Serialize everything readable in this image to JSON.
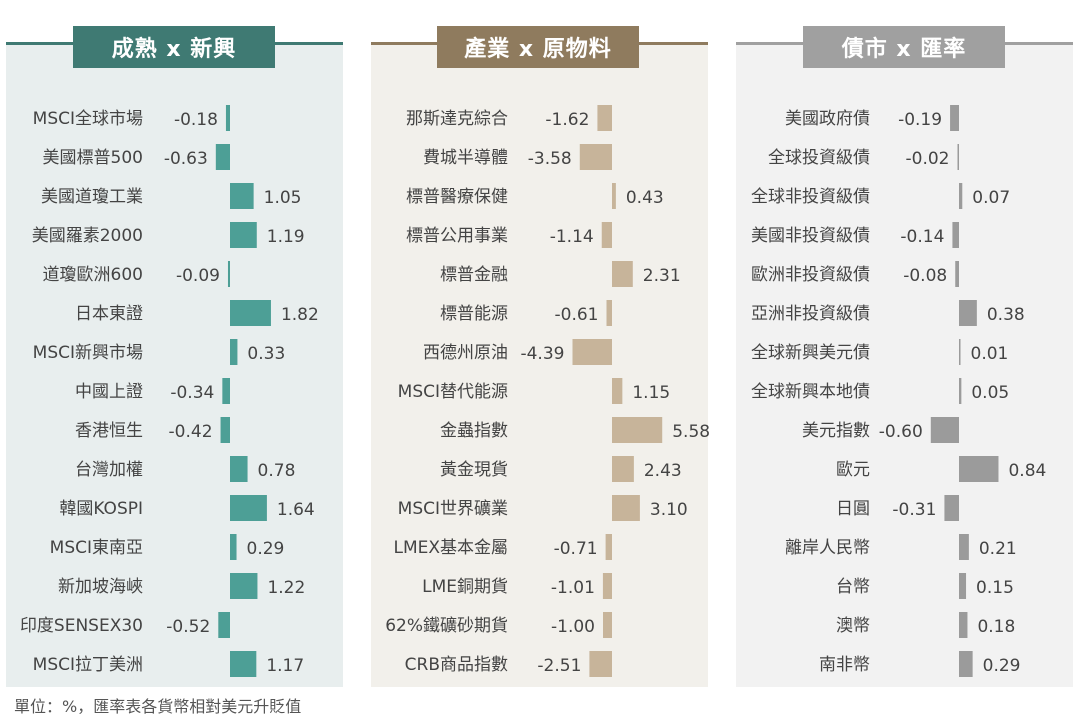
{
  "footnote": "單位：%，匯率表各貨幣相對美元升貶值",
  "colors": {
    "panel1": "#e8eeee",
    "panel2": "#f2f0eb",
    "panel3": "#f2f2f2",
    "teal": "#4d9f96",
    "tealDark": "#3f7a73",
    "tan": "#c7b49a",
    "brown": "#8f7b5e",
    "gray": "#9b9b9b",
    "grayDark": "#a0a0a0"
  },
  "chart_data": [
    {
      "type": "bar",
      "title": "成熟 x 新興",
      "categories": [
        "MSCI全球市場",
        "美國標普500",
        "美國道瓊工業",
        "美國羅素2000",
        "道瓊歐洲600",
        "日本東證",
        "MSCI新興市場",
        "中國上證",
        "香港恒生",
        "台灣加權",
        "韓國KOSPI",
        "MSCI東南亞",
        "新加坡海峽",
        "印度SENSEX30",
        "MSCI拉丁美洲"
      ],
      "values": [
        -0.18,
        -0.63,
        1.05,
        1.19,
        -0.09,
        1.82,
        0.33,
        -0.34,
        -0.42,
        0.78,
        1.64,
        0.29,
        1.22,
        -0.52,
        1.17
      ],
      "labels": [
        "-0.18",
        "-0.63",
        "1.05",
        "1.19",
        "-0.09",
        "1.82",
        "0.33",
        "-0.34",
        "-0.42",
        "0.78",
        "1.64",
        "0.29",
        "1.22",
        "-0.52",
        "1.17"
      ]
    },
    {
      "type": "bar",
      "title": "產業 x 原物料",
      "categories": [
        "那斯達克綜合",
        "費城半導體",
        "標普醫療保健",
        "標普公用事業",
        "標普金融",
        "標普能源",
        "西德州原油",
        "MSCI替代能源",
        "金蟲指數",
        "黃金現貨",
        "MSCI世界礦業",
        "LMEX基本金屬",
        "LME銅期貨",
        "62%鐵礦砂期貨",
        "CRB商品指數"
      ],
      "values": [
        -1.62,
        -3.58,
        0.43,
        -1.14,
        2.31,
        -0.61,
        -4.39,
        1.15,
        5.58,
        2.43,
        3.1,
        -0.71,
        -1.01,
        -1.0,
        -2.51
      ],
      "labels": [
        "-1.62",
        "-3.58",
        "0.43",
        "-1.14",
        "2.31",
        "-0.61",
        "-4.39",
        "1.15",
        "5.58",
        "2.43",
        "3.10",
        "-0.71",
        "-1.01",
        "-1.00",
        "-2.51"
      ]
    },
    {
      "type": "bar",
      "title": "債市 x 匯率",
      "categories": [
        "美國政府債",
        "全球投資級債",
        "全球非投資級債",
        "美國非投資級債",
        "歐洲非投資級債",
        "亞洲非投資級債",
        "全球新興美元債",
        "全球新興本地債",
        "美元指數",
        "歐元",
        "日圓",
        "離岸人民幣",
        "台幣",
        "澳幣",
        "南非幣"
      ],
      "values": [
        -0.19,
        -0.02,
        0.07,
        -0.14,
        -0.08,
        0.38,
        0.01,
        0.05,
        -0.6,
        0.84,
        -0.31,
        0.21,
        0.15,
        0.18,
        0.29
      ],
      "labels": [
        "-0.19",
        "-0.02",
        "0.07",
        "-0.14",
        "-0.08",
        "0.38",
        "0.01",
        "0.05",
        "-0.60",
        "0.84",
        "-0.31",
        "0.21",
        "0.15",
        "0.18",
        "0.29"
      ]
    }
  ]
}
